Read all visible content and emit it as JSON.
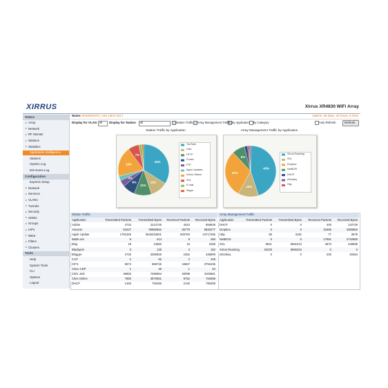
{
  "header": {
    "logo": "XIRRUS",
    "title": "Xirrus XR4830 WiFi Array"
  },
  "info": {
    "name_label": "Name:",
    "name": "XR4830497E  | 192.168.0.102 |",
    "uptime": "Uptime: 26 days, 20 hours, 8 mins"
  },
  "toolbar": {
    "vlan_label": "Display for VLAN",
    "vlan": "all",
    "station_label": "Display for Station",
    "station": "all",
    "options": [
      "Station Traffic",
      "Array Management Traffic",
      "By Application",
      "By Category"
    ],
    "auto_refresh": "Auto Refresh",
    "refresh": "Refresh"
  },
  "sidebar": [
    {
      "section": "Status",
      "items": [
        {
          "label": "Array",
          "expandable": true
        },
        {
          "label": "Network",
          "expandable": true
        },
        {
          "label": "RF Monitor",
          "expandable": true
        },
        {
          "label": "Stations",
          "expandable": true
        },
        {
          "label": "Statistics",
          "expandable": true
        },
        {
          "label": "Application Intelligence",
          "selected": true
        },
        {
          "label": "Stations"
        },
        {
          "label": "System Log"
        },
        {
          "label": "IDS Event Log"
        }
      ]
    },
    {
      "section": "Configuration",
      "items": [
        {
          "label": "Express Setup"
        },
        {
          "label": "Network",
          "expandable": true
        },
        {
          "label": "Services",
          "expandable": true
        },
        {
          "label": "VLANs",
          "expandable": true
        },
        {
          "label": "Tunnels",
          "expandable": true
        },
        {
          "label": "Security",
          "expandable": true
        },
        {
          "label": "SSIDs",
          "expandable": true
        },
        {
          "label": "Groups",
          "expandable": true
        },
        {
          "label": "IAPs",
          "expandable": true
        },
        {
          "label": "WDS",
          "expandable": true
        },
        {
          "label": "Filters",
          "expandable": true
        },
        {
          "label": "Clusters",
          "expandable": true
        }
      ]
    },
    {
      "section": "Tools",
      "items": [
        {
          "label": "Help"
        },
        {
          "label": "System Tools"
        },
        {
          "label": "CLI"
        },
        {
          "label": "Options"
        },
        {
          "label": "Logout"
        }
      ]
    }
  ],
  "chart_data": [
    {
      "type": "pie",
      "title": "Station Traffic by Application",
      "categories": [
        "YouTube",
        "Hulu",
        "HTTP",
        "iTunes",
        "FTP",
        "Apple Updates",
        "Vimeo Videos",
        "SSL",
        "E-mail",
        "Skype"
      ],
      "values": [
        34,
        11,
        11,
        8,
        4,
        3,
        19,
        7,
        2,
        1
      ],
      "value_labels": [
        "34%",
        "11%",
        "11%",
        "8%",
        "4%",
        null,
        "19%",
        "7%",
        null,
        null
      ],
      "colors": [
        "#3aa6c4",
        "#c9b47a",
        "#4f8f6a",
        "#2f4f7f",
        "#7a5c9a",
        "#6cc0c0",
        "#f2a43a",
        "#d9534f",
        "#9bbb59",
        "#e06c2c"
      ]
    },
    {
      "type": "pie",
      "title": "Array Management Traffic by Application",
      "categories": [
        "Xirrus Roaming",
        "SSL",
        "Dropbox",
        "NetBIOS",
        "DHCP",
        "eDonkey",
        "Http"
      ],
      "values": [
        45,
        13,
        30,
        8,
        2,
        1,
        1
      ],
      "value_labels": [
        "45%",
        "13%",
        "30%",
        "8%",
        null,
        null,
        null
      ],
      "colors": [
        "#3aa6c4",
        "#c9b47a",
        "#f2a43a",
        "#4f8f6a",
        "#2f4f7f",
        "#7a5c9a",
        "#d9534f"
      ]
    }
  ],
  "tables": [
    {
      "title": "Station Traffic",
      "columns": [
        "Application",
        "Transmitted Packets",
        "Transmitted Bytes",
        "Received Packets",
        "Received Bytes"
      ],
      "rows": [
        [
          "Adobe",
          "3742",
          "2213745",
          "4024",
          "656829"
        ],
        [
          "Amazon",
          "51637",
          "90866652",
          "35779",
          "6826277"
        ],
        [
          "Apple Update",
          "1791263",
          "2545315601",
          "833784",
          "44717265"
        ],
        [
          "Battle.net",
          "9",
          "414",
          "9",
          "466"
        ],
        [
          "Bing",
          "19",
          "13660",
          "16",
          "2259"
        ],
        [
          "Blackjack",
          "3",
          "128",
          "3",
          "162"
        ],
        [
          "Blogger",
          "2732",
          "3260829",
          "1552",
          "346809"
        ],
        [
          "CAP",
          "2",
          "92",
          "3",
          "108"
        ],
        [
          "CIFS",
          "9674",
          "968746",
          "16667",
          "3791635"
        ],
        [
          "Cisco CDP",
          "1",
          "46",
          "1",
          "64"
        ],
        [
          "Citrix Jedi",
          "46853",
          "7286964",
          "46098",
          "4163661"
        ],
        [
          "Citrix Online",
          "7860",
          "3870951",
          "9752",
          "794068"
        ],
        [
          "DHCP",
          "1463",
          "720456",
          "2130",
          "790269"
        ]
      ]
    },
    {
      "title": "Array Management Traffic",
      "columns": [
        "Application",
        "Transmitted Packets",
        "Transmitted Bytes",
        "Received Packets",
        "Received Bytes"
      ],
      "rows": [
        [
          "DHCP",
          "0",
          "0",
          "400",
          "142729"
        ],
        [
          "Dropbox",
          "0",
          "0",
          "31665",
          "4366953"
        ],
        [
          "Http",
          "65",
          "3181",
          "77",
          "3679"
        ],
        [
          "NetBIOS",
          "0",
          "0",
          "17661",
          "2742868"
        ],
        [
          "SSL",
          "9621",
          "5661913",
          "4873",
          "448698"
        ],
        [
          "Xirrus Roaming",
          "40229",
          "9656334",
          "0",
          "0"
        ],
        [
          "eDonkey",
          "0",
          "0",
          "230",
          "20354"
        ]
      ]
    }
  ]
}
